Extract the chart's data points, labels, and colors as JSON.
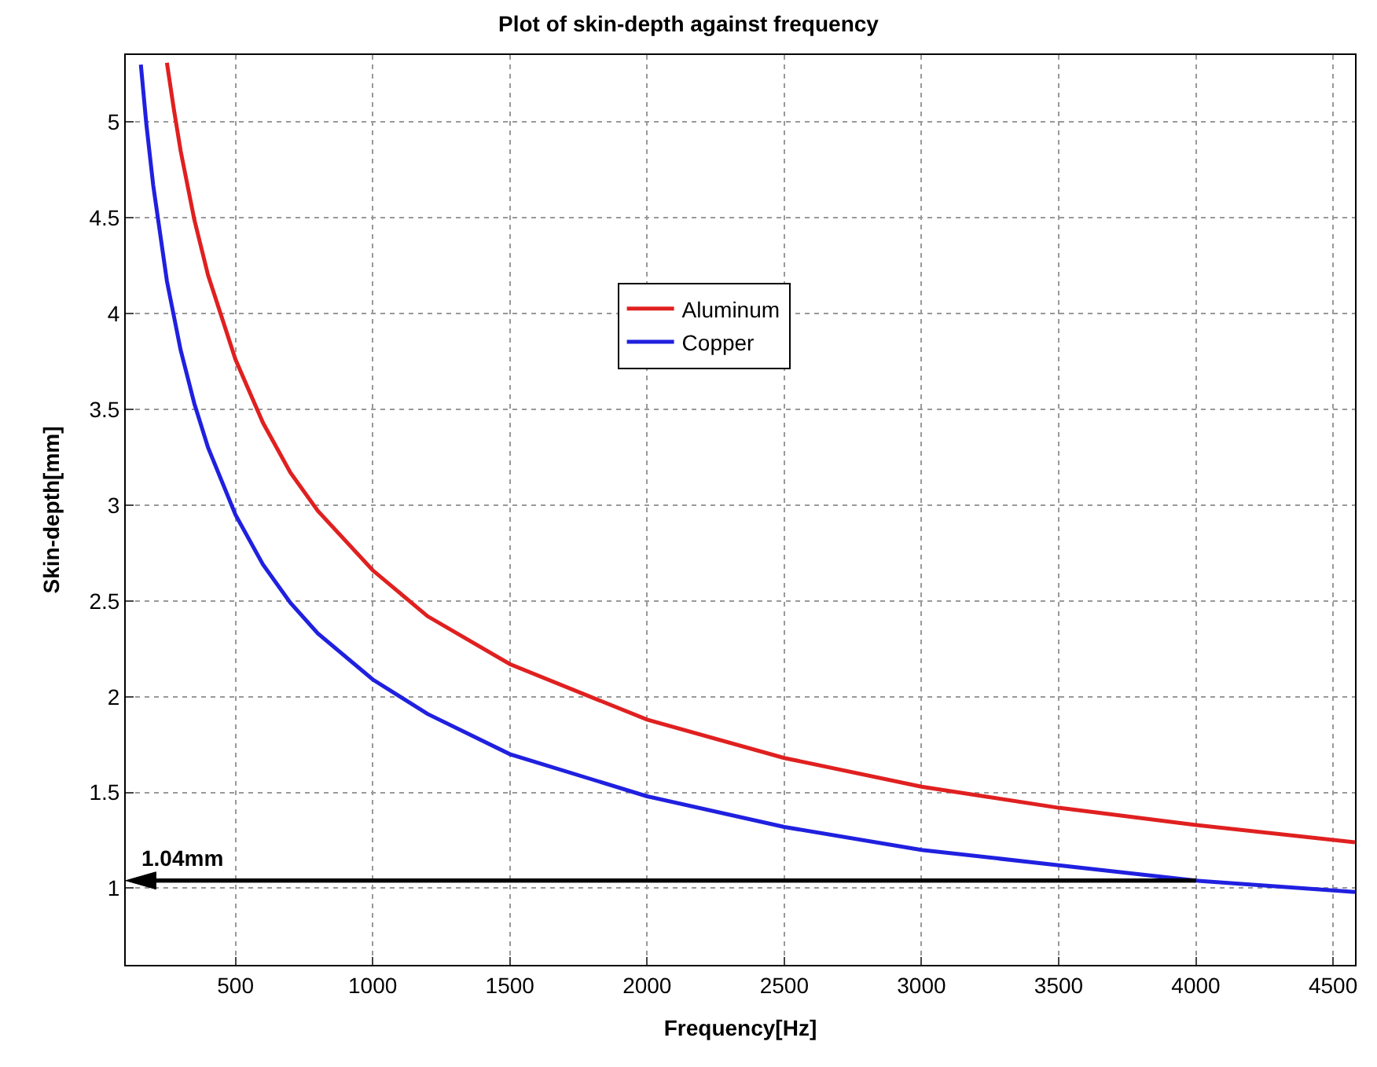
{
  "chart_data": {
    "type": "line",
    "title": "Plot of skin-depth against frequency",
    "xlabel": "Frequency[Hz]",
    "ylabel": "Skin-depth[mm]",
    "series": [
      {
        "name": "Aluminum",
        "color": "#e02020",
        "x": [
          250,
          275,
          300,
          350,
          400,
          500,
          600,
          700,
          800,
          1000,
          1200,
          1500,
          2000,
          2500,
          3000,
          3500,
          4000,
          4580
        ],
        "values": [
          5.31,
          5.07,
          4.85,
          4.49,
          4.2,
          3.76,
          3.43,
          3.17,
          2.97,
          2.66,
          2.42,
          2.17,
          1.88,
          1.68,
          1.53,
          1.42,
          1.33,
          1.24
        ]
      },
      {
        "name": "Copper",
        "color": "#2020e0",
        "x": [
          155,
          175,
          200,
          250,
          300,
          350,
          400,
          500,
          600,
          700,
          800,
          1000,
          1200,
          1500,
          2000,
          2500,
          3000,
          3500,
          4000,
          4580
        ],
        "values": [
          5.3,
          4.99,
          4.67,
          4.17,
          3.81,
          3.53,
          3.3,
          2.95,
          2.69,
          2.49,
          2.33,
          2.09,
          1.91,
          1.7,
          1.48,
          1.32,
          1.2,
          1.12,
          1.04,
          0.98
        ]
      }
    ],
    "ref_lines": [
      {
        "axis": "y",
        "value": 1.04,
        "label": "1.04mm",
        "color": "#000000"
      }
    ],
    "xlim": [
      100,
      4580
    ],
    "ylim": [
      0.6,
      5.35
    ],
    "xticks": [
      500,
      1000,
      1500,
      2000,
      2500,
      3000,
      3500,
      4000,
      4500
    ],
    "yticks": [
      1,
      1.5,
      2,
      2.5,
      3,
      3.5,
      4,
      4.5,
      5
    ],
    "grid": true,
    "legend": "top",
    "line_style": "solid",
    "marker": "none"
  }
}
